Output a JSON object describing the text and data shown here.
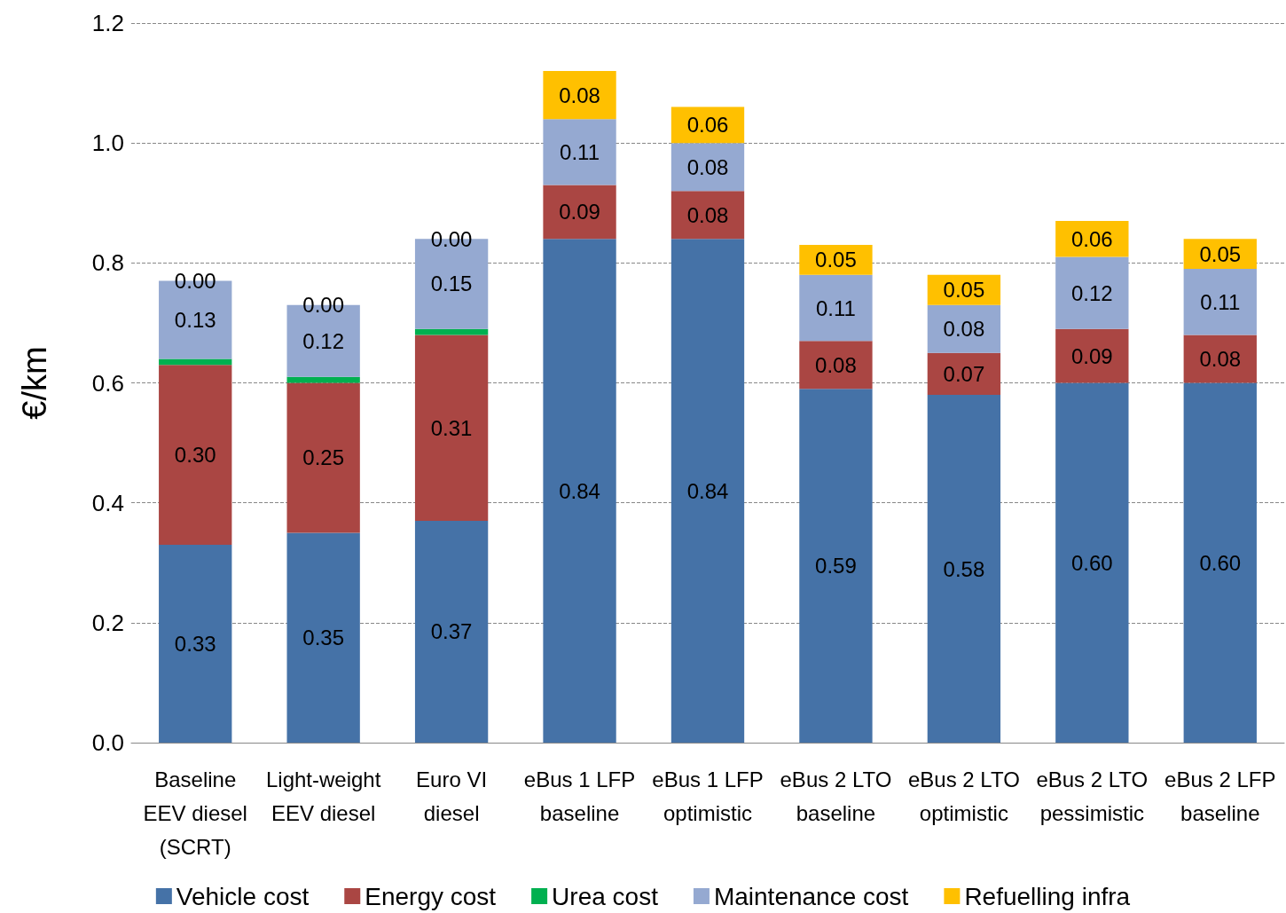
{
  "chart_data": {
    "type": "bar",
    "stacked": true,
    "ylabel": "€/km",
    "categories": [
      "Baseline\nEEV diesel\n(SCRT)",
      "Light-weight\nEEV diesel",
      "Euro VI\ndiesel",
      "eBus 1 LFP\nbaseline",
      "eBus 1 LFP\noptimistic",
      "eBus 2 LTO\nbaseline",
      "eBus 2 LTO\noptimistic",
      "eBus 2 LTO\npessimistic",
      "eBus 2 LFP\nbaseline"
    ],
    "series": [
      {
        "name": "Vehicle cost",
        "color": "#4572a7",
        "values": [
          0.33,
          0.35,
          0.37,
          0.84,
          0.84,
          0.59,
          0.58,
          0.6,
          0.6
        ],
        "value_labels": [
          "0.33",
          "0.35",
          "0.37",
          "0.84",
          "0.84",
          "0.59",
          "0.58",
          "0.60",
          "0.60"
        ]
      },
      {
        "name": "Energy cost",
        "color": "#aa4643",
        "values": [
          0.3,
          0.25,
          0.31,
          0.09,
          0.08,
          0.08,
          0.07,
          0.09,
          0.08
        ],
        "value_labels": [
          "0.30",
          "0.25",
          "0.31",
          "0.09",
          "0.08",
          "0.08",
          "0.07",
          "0.09",
          "0.08"
        ]
      },
      {
        "name": "Urea cost",
        "color": "#00b050",
        "values": [
          0.01,
          0.01,
          0.01,
          0,
          0,
          0,
          0,
          0,
          0
        ]
      },
      {
        "name": "Maintenance cost",
        "color": "#95a9d1",
        "values": [
          0.13,
          0.12,
          0.15,
          0.11,
          0.08,
          0.11,
          0.08,
          0.12,
          0.11
        ],
        "value_labels": [
          "0.13",
          "0.12",
          "0.15",
          "0.11",
          "0.08",
          "0.11",
          "0.08",
          "0.12",
          "0.11"
        ]
      },
      {
        "name": "Refuelling infra",
        "color": "#ffc000",
        "values": [
          0.0,
          0.0,
          0.0,
          0.08,
          0.06,
          0.05,
          0.05,
          0.06,
          0.05
        ],
        "value_labels": [
          "0.00",
          "0.00",
          "0.00",
          "0.08",
          "0.06",
          "0.05",
          "0.05",
          "0.06",
          "0.05"
        ]
      }
    ],
    "ylim": [
      0,
      1.2
    ],
    "yticks": [
      {
        "value": 0,
        "label": "0.0"
      },
      {
        "value": 0.2,
        "label": "0.2"
      },
      {
        "value": 0.4,
        "label": "0.4"
      },
      {
        "value": 0.6,
        "label": "0.6"
      },
      {
        "value": 0.8,
        "label": "0.8"
      },
      {
        "value": 1.0,
        "label": "1.0"
      },
      {
        "value": 1.2,
        "label": "1.2"
      }
    ],
    "grid": "y",
    "legend": "bottom"
  }
}
